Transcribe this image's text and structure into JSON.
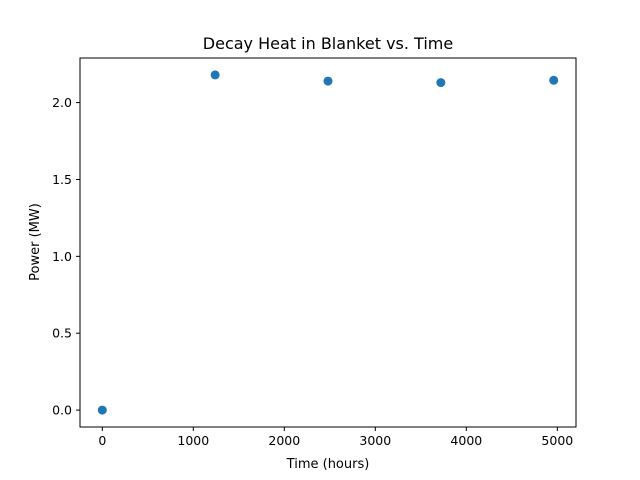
{
  "chart_data": {
    "type": "scatter",
    "title": "Decay Heat in Blanket vs. Time",
    "xlabel": "Time (hours)",
    "ylabel": "Power (MW)",
    "xlim": [
      -245,
      5205
    ],
    "ylim": [
      -0.11,
      2.29
    ],
    "xticks": [
      0,
      1000,
      2000,
      3000,
      4000,
      5000
    ],
    "xtick_labels": [
      "0",
      "1000",
      "2000",
      "3000",
      "4000",
      "5000"
    ],
    "yticks": [
      0.0,
      0.5,
      1.0,
      1.5,
      2.0
    ],
    "ytick_labels": [
      "0.0",
      "0.5",
      "1.0",
      "1.5",
      "2.0"
    ],
    "grid": false,
    "legend": "none",
    "marker_color": "#1f77b4",
    "series": [
      {
        "x": [
          0,
          1240,
          2480,
          3720,
          4960
        ],
        "y": [
          0.0,
          2.18,
          2.14,
          2.13,
          2.145
        ]
      }
    ]
  }
}
